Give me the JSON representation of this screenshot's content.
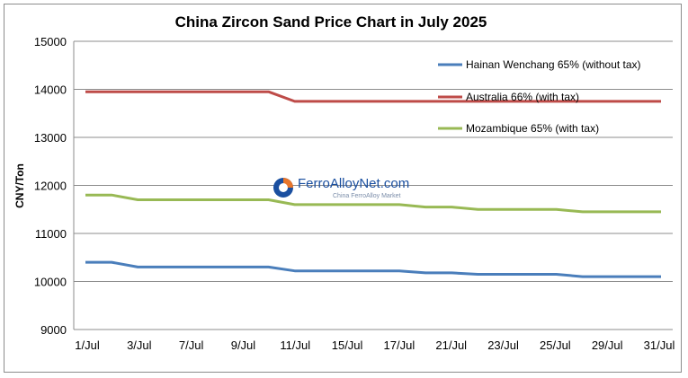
{
  "chart_data": {
    "type": "line",
    "title": "China Zircon Sand Price Chart in July 2025",
    "xlabel": "",
    "ylabel": "CNY/Ton",
    "ylim": [
      9000,
      15000
    ],
    "yticks": [
      9000,
      10000,
      11000,
      12000,
      13000,
      14000,
      15000
    ],
    "grid": true,
    "legend_position": "top-right",
    "x": [
      "1/Jul",
      "2/Jul",
      "3/Jul",
      "4/Jul",
      "7/Jul",
      "8/Jul",
      "9/Jul",
      "10/Jul",
      "11/Jul",
      "14/Jul",
      "15/Jul",
      "16/Jul",
      "17/Jul",
      "18/Jul",
      "21/Jul",
      "22/Jul",
      "23/Jul",
      "24/Jul",
      "25/Jul",
      "28/Jul",
      "29/Jul",
      "30/Jul",
      "31/Jul"
    ],
    "xtick_labels": [
      "1/Jul",
      "3/Jul",
      "7/Jul",
      "9/Jul",
      "11/Jul",
      "15/Jul",
      "17/Jul",
      "21/Jul",
      "23/Jul",
      "25/Jul",
      "29/Jul",
      "31/Jul"
    ],
    "series": [
      {
        "name": "Hainan Wenchang 65% (without tax)",
        "color": "#4a7ebb",
        "values": [
          10400,
          10400,
          10300,
          10300,
          10300,
          10300,
          10300,
          10300,
          10220,
          10220,
          10220,
          10220,
          10220,
          10180,
          10180,
          10150,
          10150,
          10150,
          10150,
          10100,
          10100,
          10100,
          10100
        ]
      },
      {
        "name": "Australia 66% (with tax)",
        "color": "#be4b48",
        "values": [
          13950,
          13950,
          13950,
          13950,
          13950,
          13950,
          13950,
          13950,
          13750,
          13750,
          13750,
          13750,
          13750,
          13750,
          13750,
          13750,
          13750,
          13750,
          13750,
          13750,
          13750,
          13750,
          13750
        ]
      },
      {
        "name": "Mozambique 65% (with tax)",
        "color": "#98b954",
        "values": [
          11800,
          11800,
          11700,
          11700,
          11700,
          11700,
          11700,
          11700,
          11600,
          11600,
          11600,
          11600,
          11600,
          11550,
          11550,
          11500,
          11500,
          11500,
          11500,
          11450,
          11450,
          11450,
          11450
        ]
      }
    ]
  },
  "watermark": {
    "brand": "FerroAlloyNet.com",
    "tagline": "China FerroAlloy Market"
  }
}
